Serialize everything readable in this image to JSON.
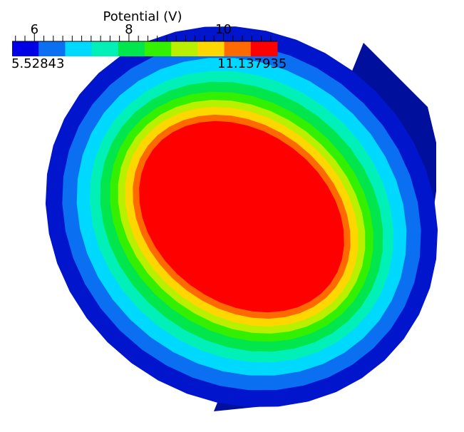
{
  "colorbar": {
    "title": "Potential (V)",
    "min_label": "5.52843",
    "max_label": "11.137935",
    "range": [
      5.52843,
      11.137935
    ],
    "major_ticks": [
      {
        "value": 6,
        "label": "6"
      },
      {
        "value": 8,
        "label": "8"
      },
      {
        "value": 10,
        "label": "10"
      }
    ],
    "minor_tick_step": 0.2,
    "colors": [
      "#0000e6",
      "#0a6ff0",
      "#00d9ff",
      "#00f0b8",
      "#00e64c",
      "#33f000",
      "#b8f000",
      "#ffd700",
      "#ff6a00",
      "#ff0000"
    ]
  },
  "object": {
    "side_color": "#00109c",
    "rim_color": "#0015cc"
  }
}
